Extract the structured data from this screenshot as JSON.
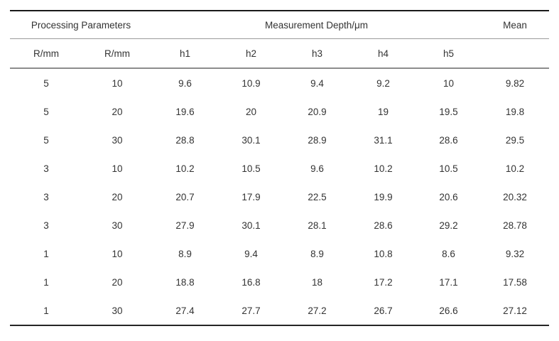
{
  "table": {
    "header_row1": [
      {
        "label": "Processing Parameters"
      },
      {
        "label": "Measurement Depth/μm"
      },
      {
        "label": "Mean"
      }
    ],
    "header_row2": [
      "R/mm",
      "R/mm",
      "h1",
      "h2",
      "h3",
      "h4",
      "h5",
      ""
    ],
    "rows": [
      [
        "5",
        "10",
        "9.6",
        "10.9",
        "9.4",
        "9.2",
        "10",
        "9.82"
      ],
      [
        "5",
        "20",
        "19.6",
        "20",
        "20.9",
        "19",
        "19.5",
        "19.8"
      ],
      [
        "5",
        "30",
        "28.8",
        "30.1",
        "28.9",
        "31.1",
        "28.6",
        "29.5"
      ],
      [
        "3",
        "10",
        "10.2",
        "10.5",
        "9.6",
        "10.2",
        "10.5",
        "10.2"
      ],
      [
        "3",
        "20",
        "20.7",
        "17.9",
        "22.5",
        "19.9",
        "20.6",
        "20.32"
      ],
      [
        "3",
        "30",
        "27.9",
        "30.1",
        "28.1",
        "28.6",
        "29.2",
        "28.78"
      ],
      [
        "1",
        "10",
        "8.9",
        "9.4",
        "8.9",
        "10.8",
        "8.6",
        "9.32"
      ],
      [
        "1",
        "20",
        "18.8",
        "16.8",
        "18",
        "17.2",
        "17.1",
        "17.58"
      ],
      [
        "1",
        "30",
        "27.4",
        "27.7",
        "27.2",
        "26.7",
        "26.6",
        "27.12"
      ]
    ],
    "colors": {
      "text": "#333333",
      "rule_dark": "#1a1a1a",
      "rule_gray": "#8c8c8c",
      "background": "#ffffff"
    }
  }
}
